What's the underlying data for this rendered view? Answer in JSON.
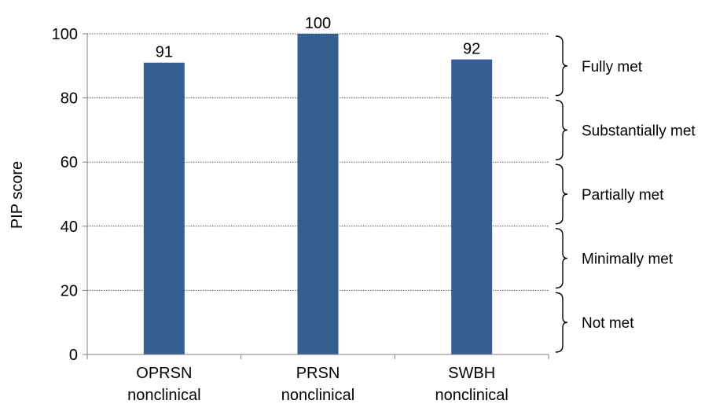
{
  "chart_data": {
    "type": "bar",
    "categories": [
      [
        "OPRSN",
        "nonclinical"
      ],
      [
        "PRSN",
        "nonclinical"
      ],
      [
        "SWBH",
        "nonclinical"
      ]
    ],
    "values": [
      91,
      100,
      92
    ],
    "data_labels": [
      "91",
      "100",
      "92"
    ],
    "title": "",
    "xlabel": "",
    "ylabel": "PIP score",
    "ylim": [
      0,
      100
    ],
    "yticks": [
      0,
      20,
      40,
      60,
      80,
      100
    ],
    "grid": "horizontal dotted",
    "legend": "none",
    "bar_color": "#375E91",
    "score_bands": [
      {
        "label": "Fully met",
        "from": 80,
        "to": 100
      },
      {
        "label": "Substantially met",
        "from": 60,
        "to": 80
      },
      {
        "label": "Partially met",
        "from": 40,
        "to": 60
      },
      {
        "label": "Minimally met",
        "from": 20,
        "to": 40
      },
      {
        "label": "Not met",
        "from": 0,
        "to": 20
      }
    ]
  }
}
